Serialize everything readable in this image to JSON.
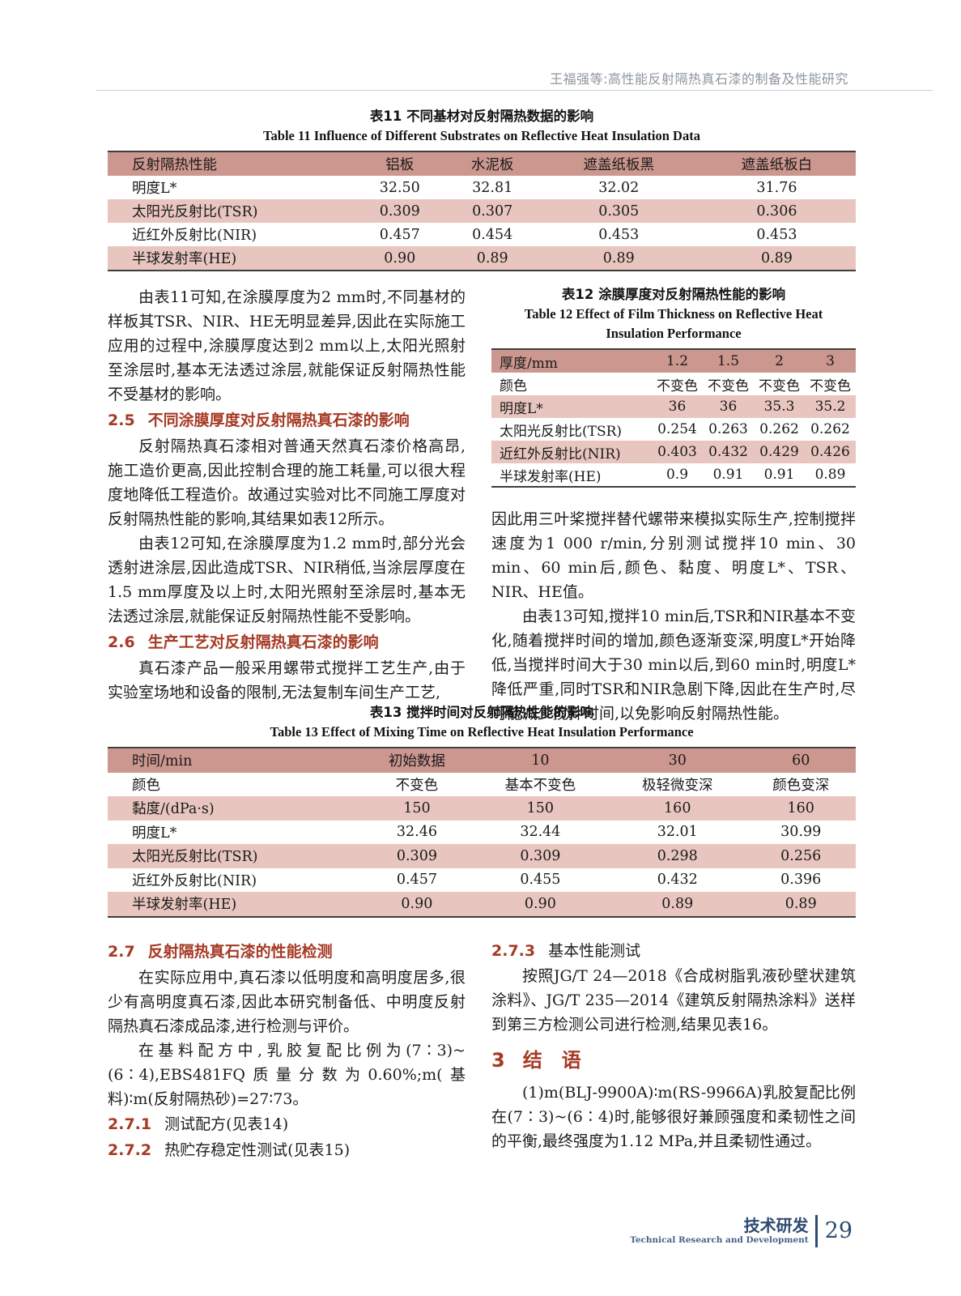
{
  "running_head": "王福强等:高性能反射隔热真石漆的制备及性能研究",
  "colors": {
    "accent_red": "#a63a25",
    "table_header_bg": "#cb978e",
    "table_stripe_bg": "#e8c6bf",
    "footer_navy": "#2d4c70",
    "running_head_gray": "#8d969e"
  },
  "table11": {
    "caption_cn": "表11  不同基材对反射隔热数据的影响",
    "caption_en": "Table 11  Influence of Different Substrates on Reflective Heat Insulation Data",
    "headers": [
      "反射隔热性能",
      "铝板",
      "水泥板",
      "遮盖纸板黑",
      "遮盖纸板白"
    ],
    "rows": [
      [
        "明度L*",
        "32.50",
        "32.81",
        "32.02",
        "31.76"
      ],
      [
        "太阳光反射比(TSR)",
        "0.309",
        "0.307",
        "0.305",
        "0.306"
      ],
      [
        "近红外反射比(NIR)",
        "0.457",
        "0.454",
        "0.453",
        "0.453"
      ],
      [
        "半球发射率(HE)",
        "0.90",
        "0.89",
        "0.89",
        "0.89"
      ]
    ]
  },
  "table12": {
    "caption_cn": "表12  涂膜厚度对反射隔热性能的影响",
    "caption_en_line1": "Table 12  Effect of Film Thickness on Reflective Heat",
    "caption_en_line2": "Insulation Performance",
    "headers": [
      "厚度/mm",
      "1.2",
      "1.5",
      "2",
      "3"
    ],
    "rows": [
      [
        "颜色",
        "不变色",
        "不变色",
        "不变色",
        "不变色"
      ],
      [
        "明度L*",
        "36",
        "36",
        "35.3",
        "35.2"
      ],
      [
        "太阳光反射比(TSR)",
        "0.254",
        "0.263",
        "0.262",
        "0.262"
      ],
      [
        "近红外反射比(NIR)",
        "0.403",
        "0.432",
        "0.429",
        "0.426"
      ],
      [
        "半球发射率(HE)",
        "0.9",
        "0.91",
        "0.91",
        "0.89"
      ]
    ]
  },
  "table13": {
    "caption_cn": "表13  搅拌时间对反射隔热性能的影响",
    "caption_en": "Table 13  Effect of Mixing Time on Reflective Heat Insulation Performance",
    "headers": [
      "时间/min",
      "初始数据",
      "10",
      "30",
      "60"
    ],
    "rows": [
      [
        "颜色",
        "不变色",
        "基本不变色",
        "极轻微变深",
        "颜色变深"
      ],
      [
        "黏度/(dPa·s)",
        "150",
        "150",
        "160",
        "160"
      ],
      [
        "明度L*",
        "32.46",
        "32.44",
        "32.01",
        "30.99"
      ],
      [
        "太阳光反射比(TSR)",
        "0.309",
        "0.309",
        "0.298",
        "0.256"
      ],
      [
        "近红外反射比(NIR)",
        "0.457",
        "0.455",
        "0.432",
        "0.396"
      ],
      [
        "半球发射率(HE)",
        "0.90",
        "0.90",
        "0.89",
        "0.89"
      ]
    ]
  },
  "col_top_left": {
    "p1": "由表11可知,在涂膜厚度为2 mm时,不同基材的样板其TSR、NIR、HE无明显差异,因此在实际施工应用的过程中,涂膜厚度达到2 mm以上,太阳光照射至涂层时,基本无法透过涂层,就能保证反射隔热性能不受基材的影响。",
    "h25_num": "2.5",
    "h25_title": "不同涂膜厚度对反射隔热真石漆的影响",
    "p2": "反射隔热真石漆相对普通天然真石漆价格高昂,施工造价更高,因此控制合理的施工耗量,可以很大程度地降低工程造价。故通过实验对比不同施工厚度对反射隔热性能的影响,其结果如表12所示。",
    "p3": "由表12可知,在涂膜厚度为1.2 mm时,部分光会透射进涂层,因此造成TSR、NIR稍低,当涂层厚度在1.5 mm厚度及以上时,太阳光照射至涂层时,基本无法透过涂层,就能保证反射隔热性能不受影响。",
    "h26_num": "2.6",
    "h26_title": "生产工艺对反射隔热真石漆的影响",
    "p4": "真石漆产品一般采用螺带式搅拌工艺生产,由于实验室场地和设备的限制,无法复制车间生产工艺,"
  },
  "col_top_right": {
    "p1": "因此用三叶桨搅拌替代螺带来模拟实际生产,控制搅拌速度为1 000 r/min,分别测试搅拌10 min、30 min、60 min后,颜色、黏度、明度L*、TSR、NIR、HE值。",
    "p2": "由表13可知,搅拌10 min后,TSR和NIR基本不变化,随着搅拌时间的增加,颜色逐渐变深,明度L*开始降低,当搅拌时间大于30 min以后,到60 min时,明度L*降低严重,同时TSR和NIR急剧下降,因此在生产时,尽可能减少搅拌时间,以免影响反射隔热性能。"
  },
  "col_bot_left": {
    "h27_num": "2.7",
    "h27_title": "反射隔热真石漆的性能检测",
    "p1": "在实际应用中,真石漆以低明度和高明度居多,很少有高明度真石漆,因此本研究制备低、中明度反射隔热真石漆成品漆,进行检测与评价。",
    "p2": "在基料配方中,乳胶复配比例为(7∶3)~(6∶4),EBS481FQ质量分数为0.60%;m(基料)∶m(反射隔热砂)=27∶73。",
    "h271_num": "2.7.1",
    "h271_title": "测试配方(见表14)",
    "h272_num": "2.7.2",
    "h272_title": "热贮存稳定性测试(见表15)"
  },
  "col_bot_right": {
    "h273_num": "2.7.3",
    "h273_title": "基本性能测试",
    "p1": "按照JG/T 24—2018《合成树脂乳液砂壁状建筑涂料》、JG/T 235—2014《建筑反射隔热涂料》送样到第三方检测公司进行检测,结果见表16。",
    "h3_num": "3",
    "h3_title": "结　语",
    "p2": "(1)m(BLJ-9900A)∶m(RS-9966A)乳胶复配比例在(7∶3)~(6∶4)时,能够很好兼顾强度和柔韧性之间的平衡,最终强度为1.12 MPa,并且柔韧性通过。"
  },
  "footer": {
    "section_cn": "技术研发",
    "section_en": "Technical Research and Development",
    "page_number": "29"
  }
}
